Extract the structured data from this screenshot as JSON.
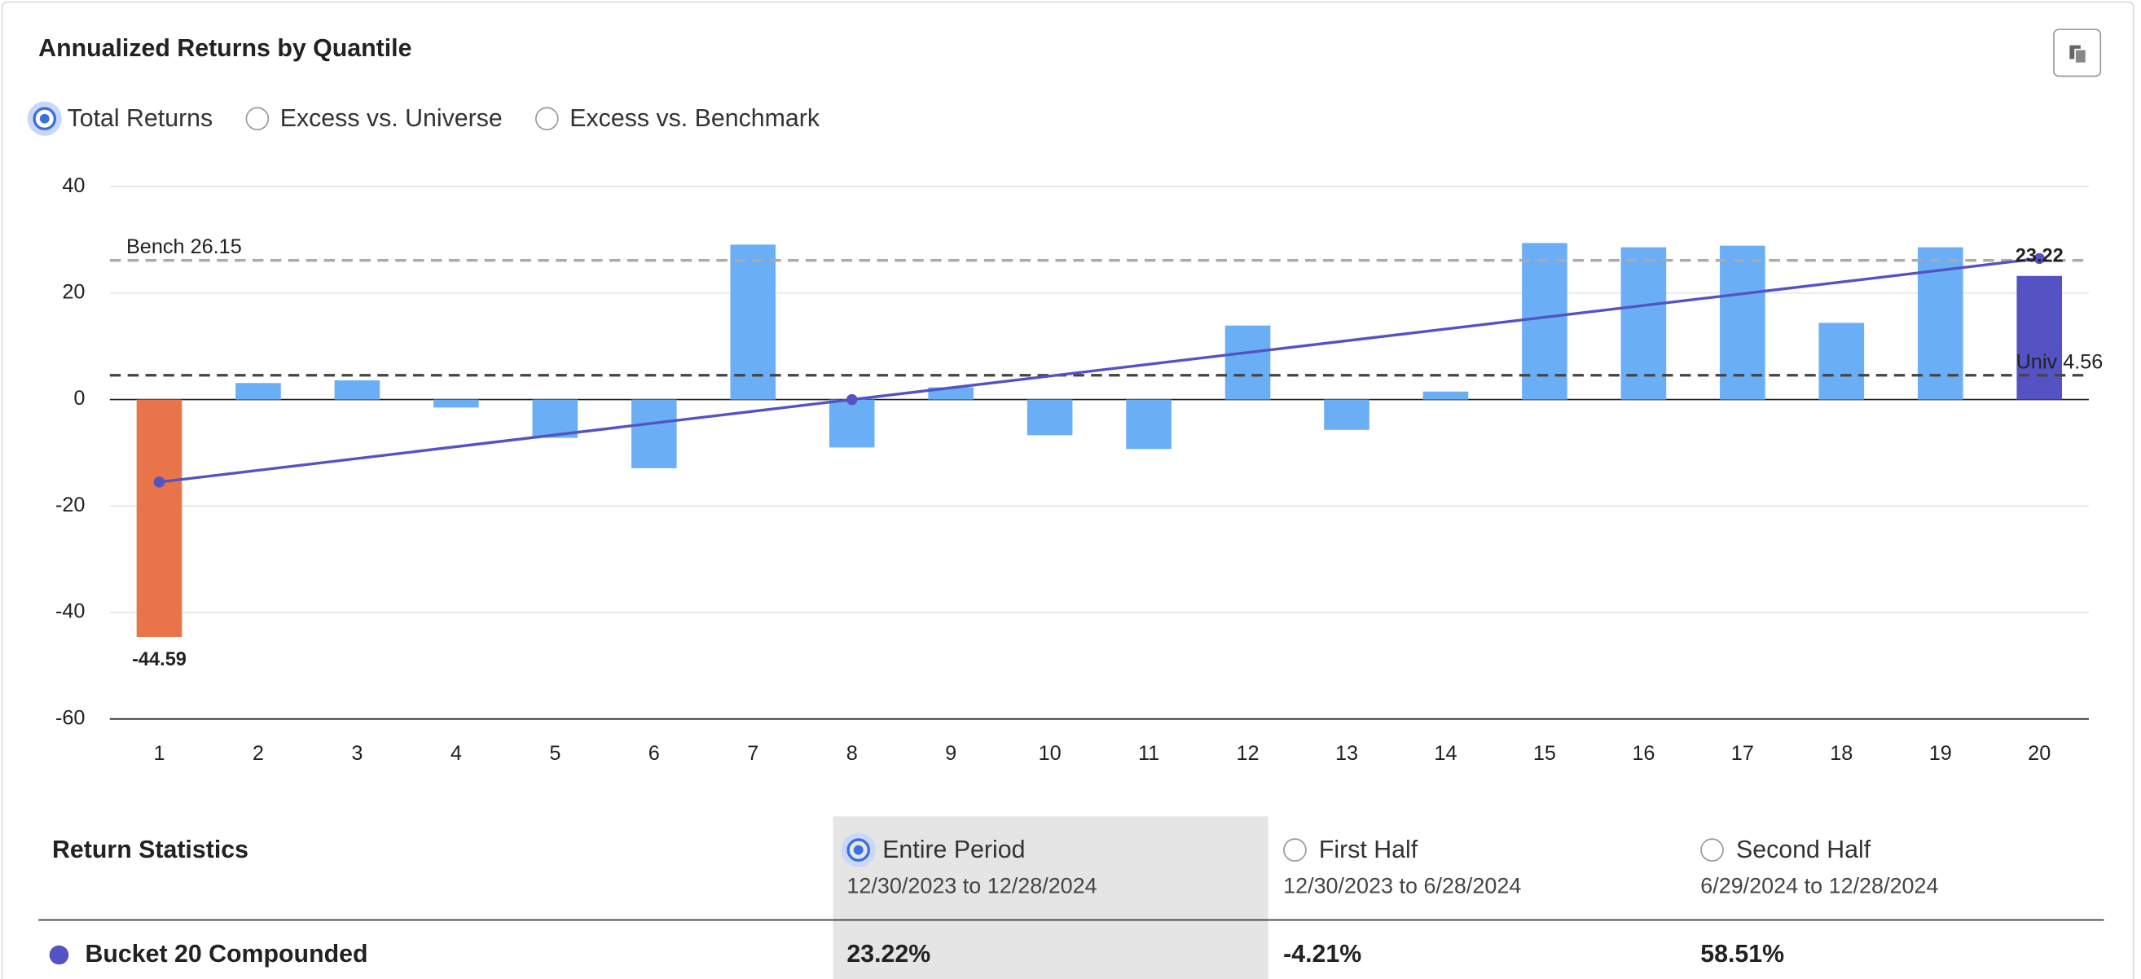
{
  "chart_data": {
    "type": "bar",
    "title": "Annualized Returns by Quantile",
    "categories": [
      "1",
      "2",
      "3",
      "4",
      "5",
      "6",
      "7",
      "8",
      "9",
      "10",
      "11",
      "12",
      "13",
      "14",
      "15",
      "16",
      "17",
      "18",
      "19",
      "20"
    ],
    "values": [
      -44.59,
      3.1,
      3.6,
      -1.5,
      -7.2,
      -12.9,
      29.1,
      -9.0,
      2.3,
      -6.7,
      -9.3,
      13.9,
      -5.7,
      1.5,
      29.4,
      28.6,
      28.9,
      14.4,
      28.6,
      23.22
    ],
    "value_labels": [
      "-44.59",
      null,
      null,
      null,
      null,
      null,
      null,
      null,
      null,
      null,
      null,
      null,
      null,
      null,
      null,
      null,
      null,
      null,
      null,
      "23.22"
    ],
    "colors": [
      "#e8744a",
      "#6aaef5",
      "#6aaef5",
      "#6aaef5",
      "#6aaef5",
      "#6aaef5",
      "#6aaef5",
      "#6aaef5",
      "#6aaef5",
      "#6aaef5",
      "#6aaef5",
      "#6aaef5",
      "#6aaef5",
      "#6aaef5",
      "#6aaef5",
      "#6aaef5",
      "#6aaef5",
      "#6aaef5",
      "#6aaef5",
      "#5552c4"
    ],
    "ylim": [
      -60,
      40
    ],
    "yticks": [
      -60,
      -40,
      -20,
      0,
      20,
      40
    ],
    "grid": true,
    "trend": {
      "x": [
        1,
        8,
        20
      ],
      "values": [
        -15.5,
        0,
        26.5
      ],
      "color": "#5552c4"
    },
    "reference_lines": [
      {
        "label": "Bench 26.15",
        "value": 26.15,
        "color": "#aaaaaa"
      },
      {
        "label": "Univ 4.56",
        "value": 4.56,
        "color": "#444444"
      }
    ]
  },
  "options": {
    "items": [
      "Total Returns",
      "Excess vs. Universe",
      "Excess vs. Benchmark"
    ],
    "selected": 0
  },
  "stats": {
    "title": "Return Statistics",
    "selected": 0,
    "columns": [
      {
        "name": "Entire Period",
        "range": "12/30/2023 to 12/28/2024"
      },
      {
        "name": "First Half",
        "range": "12/30/2023 to 6/28/2024"
      },
      {
        "name": "Second Half",
        "range": "6/29/2024 to 12/28/2024"
      }
    ],
    "rows": [
      {
        "label": "Bucket 20 Compounded",
        "cells": [
          "23.22%",
          "-4.21%",
          "58.51%"
        ]
      }
    ]
  }
}
